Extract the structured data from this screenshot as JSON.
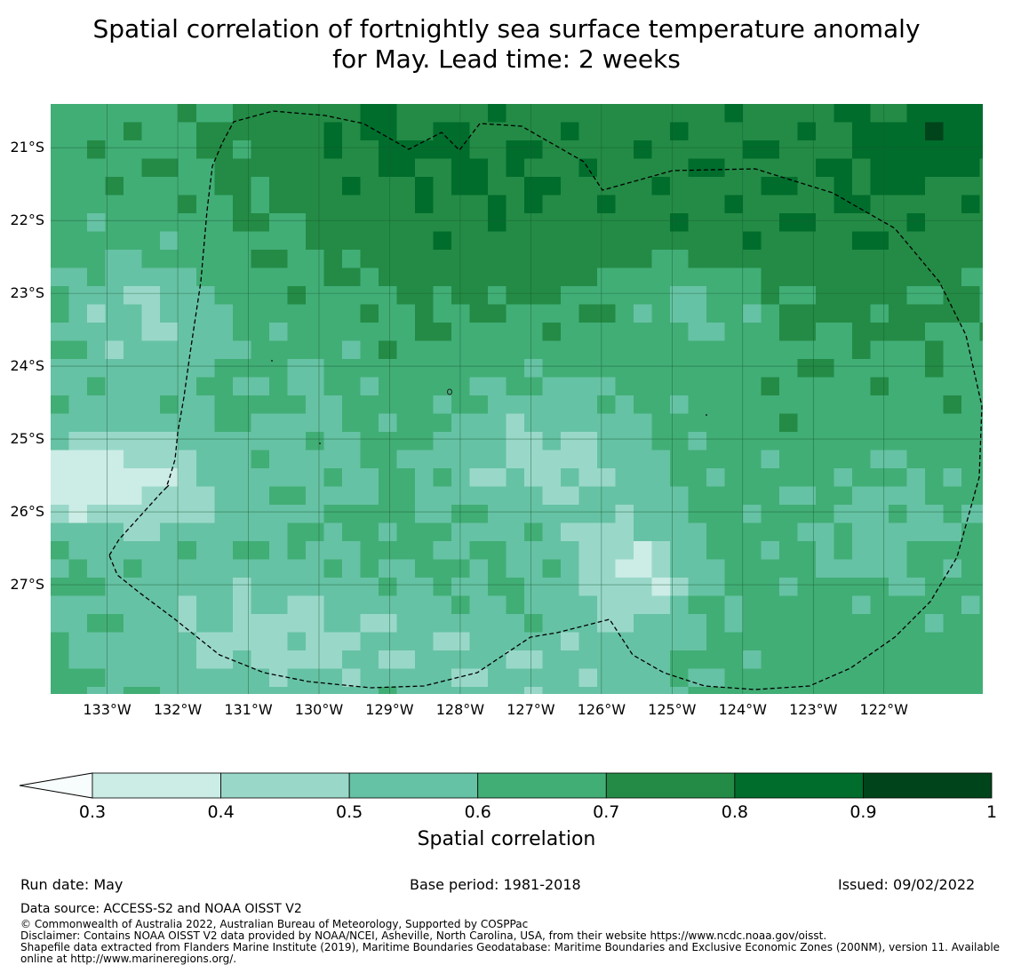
{
  "title": {
    "line1": "Spatial correlation of fortnightly sea surface temperature anomaly",
    "line2": "for May. Lead time: 2 weeks"
  },
  "map": {
    "lat_labels": [
      "21°S",
      "22°S",
      "23°S",
      "24°S",
      "25°S",
      "26°S",
      "27°S"
    ],
    "lon_labels": [
      "133°W",
      "132°W",
      "131°W",
      "130°W",
      "129°W",
      "128°W",
      "127°W",
      "126°W",
      "125°W",
      "124°W",
      "123°W",
      "122°W"
    ],
    "zone": "dashed-outline maritime boundary (EEZ)"
  },
  "colorbar": {
    "ticks": [
      "0.3",
      "0.4",
      "0.5",
      "0.6",
      "0.7",
      "0.8",
      "0.9",
      "1"
    ],
    "colors": [
      "#ccece6",
      "#99d8c9",
      "#66c2a4",
      "#41ae76",
      "#238b45",
      "#006d2c",
      "#00441b"
    ],
    "under_color": "#f7fcfd",
    "label": "Spatial correlation"
  },
  "chart_data": {
    "type": "heatmap",
    "title": "Spatial correlation of fortnightly sea surface temperature anomaly for May. Lead time: 2 weeks",
    "xlabel": "",
    "ylabel": "",
    "colorbar_label": "Spatial correlation",
    "xlim": [
      -133.8,
      -120.6
    ],
    "ylim": [
      -28.5,
      -20.4
    ],
    "levels": [
      0.3,
      0.4,
      0.5,
      0.6,
      0.7,
      0.8,
      0.9,
      1.0
    ],
    "lon_ticks": [
      -133,
      -132,
      -131,
      -130,
      -129,
      -128,
      -127,
      -126,
      -125,
      -124,
      -123,
      -122
    ],
    "lat_ticks": [
      -21,
      -22,
      -23,
      -24,
      -25,
      -26,
      -27
    ],
    "approx_regions": [
      {
        "area": "north-central and north-east",
        "range": "0.7-0.8"
      },
      {
        "area": "far north-east corner",
        "range": "0.8-0.9"
      },
      {
        "area": "centre",
        "range": "0.6-0.7"
      },
      {
        "area": "west near 133°W 25.5°S",
        "range": "0.3-0.4 and below"
      },
      {
        "area": "south-central near 126°W 27°S",
        "range": "0.3-0.5"
      }
    ]
  },
  "footer": {
    "run_date": "Run date: May",
    "base_period": "Base period: 1981-2018",
    "issued": "Issued: 09/02/2022",
    "data_source": "Data source: ACCESS-S2 and NOAA OISST V2",
    "copyright": "© Commonwealth of Australia 2022, Australian Bureau of Meteorology, Supported by COSPPac",
    "disclaimer": "Disclaimer: Contains NOAA OISST V2 data provided by NOAA/NCEI, Asheville, North Carolina, USA, from their website https://www.ncdc.noaa.gov/oisst.",
    "shapefile": "Shapefile data extracted from Flanders Marine Institute (2019), Maritime Boundaries Geodatabase: Maritime Boundaries and Exclusive Economic Zones (200NM), version 11. Available online at http://www.marineregions.org/."
  }
}
